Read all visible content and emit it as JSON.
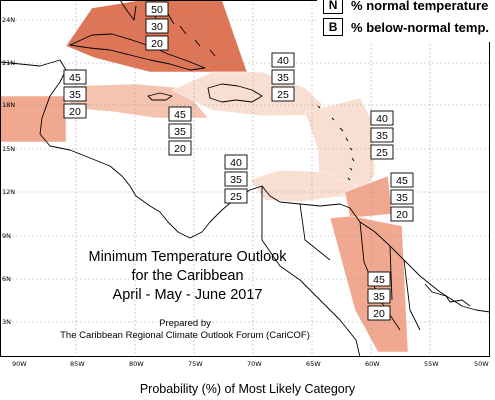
{
  "legend": {
    "normal": {
      "key": "N",
      "text": "% normal temperature"
    },
    "below": {
      "key": "B",
      "text": "% below-normal temp."
    }
  },
  "title": {
    "line1": "Minimum Temperature Outlook",
    "line2": "for the Caribbean",
    "line3": "April - May - June 2017"
  },
  "prepared": {
    "line1": "Prepared by",
    "line2": "The Caribbean Regional Climate Outlook Forum (CariCOF)"
  },
  "caption": "Probability (%) of Most Likely Category",
  "axes": {
    "lat_labels": [
      "24N",
      "21N",
      "18N",
      "15N",
      "12N",
      "9N",
      "6N",
      "3N"
    ],
    "lon_labels": [
      "90W",
      "85W",
      "80W",
      "75W",
      "70W",
      "65W",
      "60W",
      "55W",
      "50W"
    ]
  },
  "colors": {
    "very_light": "#f9ded2",
    "light": "#f5c4b0",
    "medium": "#f0a890",
    "dark": "#dc7656",
    "land_fill": "#ffffff"
  },
  "regions": [
    {
      "name": "cuba-bahamas",
      "values": [
        "50",
        "30",
        "20"
      ],
      "shade": "dark"
    },
    {
      "name": "belize-yucatan",
      "values": [
        "45",
        "35",
        "20"
      ],
      "shade": "medium"
    },
    {
      "name": "jamaica-cayman",
      "values": [
        "45",
        "35",
        "20"
      ],
      "shade": "light"
    },
    {
      "name": "hispaniola-puerto-rico",
      "values": [
        "40",
        "35",
        "25"
      ],
      "shade": "very_light"
    },
    {
      "name": "lesser-antilles",
      "values": [
        "40",
        "35",
        "25"
      ],
      "shade": "very_light"
    },
    {
      "name": "abc-islands",
      "values": [
        "40",
        "35",
        "25"
      ],
      "shade": "very_light"
    },
    {
      "name": "trinidad-tobago",
      "values": [
        "45",
        "35",
        "20"
      ],
      "shade": "medium"
    },
    {
      "name": "guianas",
      "values": [
        "45",
        "35",
        "20"
      ],
      "shade": "medium"
    }
  ]
}
